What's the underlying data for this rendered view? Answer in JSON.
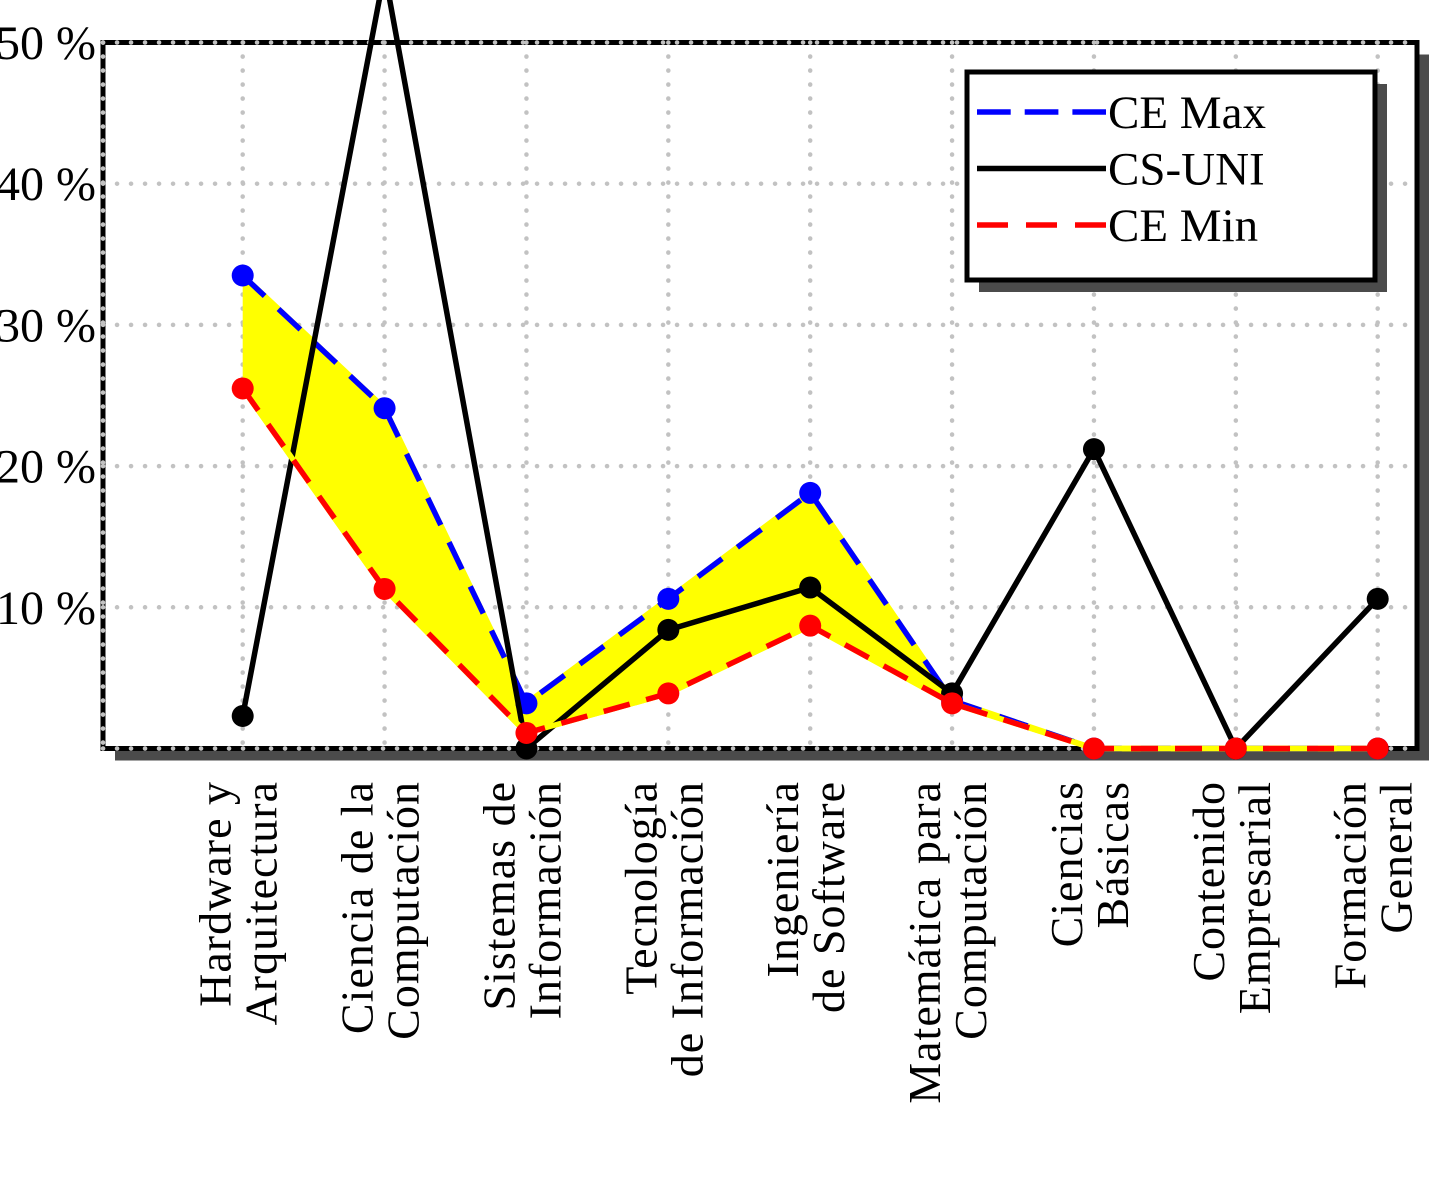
{
  "figure": {
    "background": "#ffffff",
    "frame_color": "#000000",
    "shadow_color": "#4b4b4b",
    "grid_color": "#c2c2c2"
  },
  "legend": {
    "items": [
      {
        "label": "CE Max",
        "color": "#0000ff",
        "style": "dashed"
      },
      {
        "label": "CS-UNI",
        "color": "#000000",
        "style": "solid"
      },
      {
        "label": "CE Min",
        "color": "#ff0000",
        "style": "dashed"
      }
    ]
  },
  "chart_data": {
    "type": "line",
    "title": "",
    "xlabel": "",
    "ylabel": "",
    "unit": "percent",
    "ylim": [
      0,
      50
    ],
    "grid": "dotted-both",
    "legend_position": "top-right",
    "categories": [
      {
        "line1": "Hardware y",
        "line2": "Arquitectura"
      },
      {
        "line1": "Ciencia de la",
        "line2": "Computación"
      },
      {
        "line1": "Sistemas de",
        "line2": "Información"
      },
      {
        "line1": "Tecnología",
        "line2": "de Información"
      },
      {
        "line1": "Ingeniería",
        "line2": "de Software"
      },
      {
        "line1": "Matemática para",
        "line2": "Computación"
      },
      {
        "line1": "Ciencias",
        "line2": "Básicas"
      },
      {
        "line1": "Contenido",
        "line2": "Empresarial"
      },
      {
        "line1": "Formación",
        "line2": "General"
      }
    ],
    "yticks": [
      {
        "label": "10 %",
        "value": 10
      },
      {
        "label": "20 %",
        "value": 20
      },
      {
        "label": "30 %",
        "value": 30
      },
      {
        "label": "40 %",
        "value": 40
      },
      {
        "label": "50 %",
        "value": 50
      }
    ],
    "band": {
      "upper": "CE Max",
      "lower": "CE Min",
      "fill": "#ffff00"
    },
    "series": [
      {
        "name": "CE Max",
        "color": "#0000ff",
        "line": "dashed",
        "marker": "circle",
        "values": [
          33.5,
          24.1,
          3.2,
          10.6,
          18.1,
          3.4,
          0,
          0,
          0
        ]
      },
      {
        "name": "CS-UNI",
        "color": "#000000",
        "line": "solid",
        "marker": "circle",
        "values": [
          2.3,
          55,
          0,
          8.4,
          11.4,
          3.9,
          21.2,
          0,
          10.6
        ]
      },
      {
        "name": "CE Min",
        "color": "#ff0000",
        "line": "dashed",
        "marker": "circle",
        "values": [
          25.5,
          11.3,
          1.1,
          3.9,
          8.7,
          3.2,
          0,
          0,
          0
        ]
      }
    ]
  }
}
